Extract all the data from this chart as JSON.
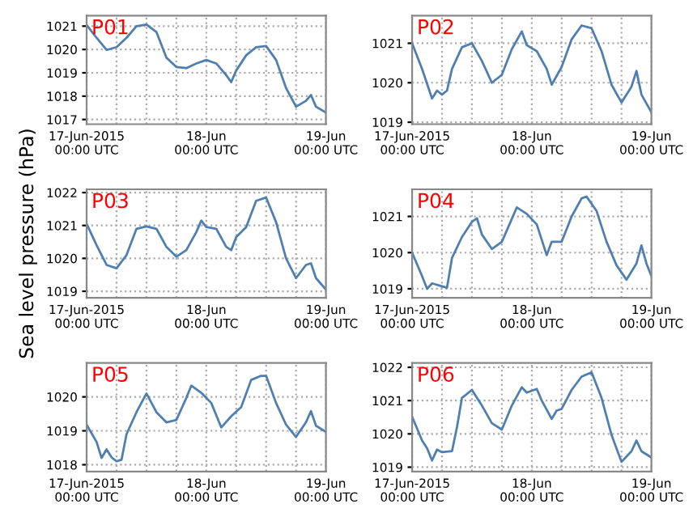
{
  "chart_data": [
    {
      "type": "line",
      "annotations": [
        "P01"
      ],
      "x": [
        "2015-06-17T00:00",
        "2015-06-17T02:00",
        "2015-06-17T04:00",
        "2015-06-17T06:00",
        "2015-06-17T08:00",
        "2015-06-17T10:00",
        "2015-06-17T12:00",
        "2015-06-17T14:00",
        "2015-06-17T16:00",
        "2015-06-17T18:00",
        "2015-06-17T20:00",
        "2015-06-17T22:00",
        "2015-06-18T00:00",
        "2015-06-18T02:00",
        "2015-06-18T04:00",
        "2015-06-18T05:00",
        "2015-06-18T06:00",
        "2015-06-18T08:00",
        "2015-06-18T10:00",
        "2015-06-18T12:00",
        "2015-06-18T14:00",
        "2015-06-18T16:00",
        "2015-06-18T18:00",
        "2015-06-18T20:00",
        "2015-06-18T21:00",
        "2015-06-18T22:00",
        "2015-06-19T00:00"
      ],
      "series": [
        {
          "color": "#4f7fb0",
          "values": [
            1021.05,
            1020.5,
            1019.98,
            1020.1,
            1020.5,
            1021.0,
            1021.07,
            1020.75,
            1019.65,
            1019.25,
            1019.2,
            1019.4,
            1019.55,
            1019.4,
            1018.9,
            1018.6,
            1019.1,
            1019.75,
            1020.1,
            1020.15,
            1019.55,
            1018.35,
            1017.55,
            1017.8,
            1018.05,
            1017.55,
            1017.3
          ]
        }
      ],
      "xlim": [
        "2015-06-17T00:00",
        "2015-06-19T00:00"
      ],
      "xticks": [
        {
          "value": "2015-06-17T00:00",
          "label": "17-Jun-2015\n00:00 UTC"
        },
        {
          "value": "2015-06-17T06:00",
          "label": null
        },
        {
          "value": "2015-06-17T12:00",
          "label": null
        },
        {
          "value": "2015-06-17T18:00",
          "label": null
        },
        {
          "value": "2015-06-18T00:00",
          "label": "18-Jun\n00:00 UTC"
        },
        {
          "value": "2015-06-18T06:00",
          "label": null
        },
        {
          "value": "2015-06-18T12:00",
          "label": null
        },
        {
          "value": "2015-06-18T18:00",
          "label": null
        },
        {
          "value": "2015-06-19T00:00",
          "label": "19-Jun\n00:00 UTC"
        }
      ],
      "ylim": [
        1016.8,
        1021.45
      ],
      "yticks": [
        1017,
        1018,
        1019,
        1020,
        1021
      ],
      "grid": true,
      "line_style": "solid"
    },
    {
      "type": "line",
      "annotations": [
        "P02"
      ],
      "x": [
        "2015-06-17T00:00",
        "2015-06-17T02:00",
        "2015-06-17T04:00",
        "2015-06-17T05:00",
        "2015-06-17T06:00",
        "2015-06-17T07:00",
        "2015-06-17T08:00",
        "2015-06-17T10:00",
        "2015-06-17T12:00",
        "2015-06-17T14:00",
        "2015-06-17T16:00",
        "2015-06-17T18:00",
        "2015-06-17T20:00",
        "2015-06-17T22:00",
        "2015-06-17T23:00",
        "2015-06-18T01:00",
        "2015-06-18T03:00",
        "2015-06-18T04:00",
        "2015-06-18T06:00",
        "2015-06-18T08:00",
        "2015-06-18T10:00",
        "2015-06-18T12:00",
        "2015-06-18T14:00",
        "2015-06-18T16:00",
        "2015-06-18T18:00",
        "2015-06-18T20:00",
        "2015-06-18T21:00",
        "2015-06-18T22:00",
        "2015-06-19T00:00"
      ],
      "series": [
        {
          "color": "#4f7fb0",
          "values": [
            1021.0,
            1020.35,
            1019.6,
            1019.8,
            1019.7,
            1019.8,
            1020.35,
            1020.9,
            1021.0,
            1020.55,
            1020.0,
            1020.2,
            1020.85,
            1021.3,
            1020.95,
            1020.8,
            1020.35,
            1019.95,
            1020.4,
            1021.1,
            1021.45,
            1021.38,
            1020.8,
            1019.95,
            1019.5,
            1019.9,
            1020.3,
            1019.7,
            1019.25
          ]
        }
      ],
      "xlim": [
        "2015-06-17T00:00",
        "2015-06-19T00:00"
      ],
      "xticks": [
        {
          "value": "2015-06-17T00:00",
          "label": "17-Jun-2015\n00:00 UTC"
        },
        {
          "value": "2015-06-17T06:00",
          "label": null
        },
        {
          "value": "2015-06-17T12:00",
          "label": null
        },
        {
          "value": "2015-06-17T18:00",
          "label": null
        },
        {
          "value": "2015-06-18T00:00",
          "label": "18-Jun\n00:00 UTC"
        },
        {
          "value": "2015-06-18T06:00",
          "label": null
        },
        {
          "value": "2015-06-18T12:00",
          "label": null
        },
        {
          "value": "2015-06-18T18:00",
          "label": null
        },
        {
          "value": "2015-06-19T00:00",
          "label": "19-Jun\n00:00 UTC"
        }
      ],
      "ylim": [
        1018.95,
        1021.7
      ],
      "yticks": [
        1019,
        1020,
        1021
      ],
      "grid": true,
      "line_style": "solid"
    },
    {
      "type": "line",
      "annotations": [
        "P03"
      ],
      "ylabel": "Sea level pressure (hPa)",
      "x": [
        "2015-06-17T00:00",
        "2015-06-17T02:00",
        "2015-06-17T04:00",
        "2015-06-17T06:00",
        "2015-06-17T08:00",
        "2015-06-17T10:00",
        "2015-06-17T12:00",
        "2015-06-17T14:00",
        "2015-06-17T16:00",
        "2015-06-17T18:00",
        "2015-06-17T20:00",
        "2015-06-17T22:00",
        "2015-06-17T23:00",
        "2015-06-18T00:00",
        "2015-06-18T02:00",
        "2015-06-18T04:00",
        "2015-06-18T05:00",
        "2015-06-18T06:00",
        "2015-06-18T08:00",
        "2015-06-18T10:00",
        "2015-06-18T12:00",
        "2015-06-18T14:00",
        "2015-06-18T16:00",
        "2015-06-18T18:00",
        "2015-06-18T20:00",
        "2015-06-18T21:00",
        "2015-06-18T22:00",
        "2015-06-19T00:00"
      ],
      "series": [
        {
          "color": "#4f7fb0",
          "values": [
            1021.05,
            1020.4,
            1019.8,
            1019.7,
            1020.1,
            1020.9,
            1020.97,
            1020.9,
            1020.35,
            1020.05,
            1020.25,
            1020.8,
            1021.15,
            1020.95,
            1020.9,
            1020.35,
            1020.25,
            1020.65,
            1020.95,
            1021.75,
            1021.85,
            1021.1,
            1020.0,
            1019.4,
            1019.8,
            1019.85,
            1019.4,
            1019.05
          ]
        }
      ],
      "xlim": [
        "2015-06-17T00:00",
        "2015-06-19T00:00"
      ],
      "xticks": [
        {
          "value": "2015-06-17T00:00",
          "label": "17-Jun-2015\n00:00 UTC"
        },
        {
          "value": "2015-06-17T06:00",
          "label": null
        },
        {
          "value": "2015-06-17T12:00",
          "label": null
        },
        {
          "value": "2015-06-17T18:00",
          "label": null
        },
        {
          "value": "2015-06-18T00:00",
          "label": "18-Jun\n00:00 UTC"
        },
        {
          "value": "2015-06-18T06:00",
          "label": null
        },
        {
          "value": "2015-06-18T12:00",
          "label": null
        },
        {
          "value": "2015-06-18T18:00",
          "label": null
        },
        {
          "value": "2015-06-19T00:00",
          "label": "19-Jun\n00:00 UTC"
        }
      ],
      "ylim": [
        1018.8,
        1022.1
      ],
      "yticks": [
        1019,
        1020,
        1021,
        1022
      ],
      "grid": true,
      "line_style": "solid"
    },
    {
      "type": "line",
      "annotations": [
        "P04"
      ],
      "x": [
        "2015-06-17T00:00",
        "2015-06-17T02:00",
        "2015-06-17T03:00",
        "2015-06-17T04:00",
        "2015-06-17T06:00",
        "2015-06-17T07:00",
        "2015-06-17T08:00",
        "2015-06-17T10:00",
        "2015-06-17T12:00",
        "2015-06-17T13:00",
        "2015-06-17T14:00",
        "2015-06-17T16:00",
        "2015-06-17T18:00",
        "2015-06-17T20:00",
        "2015-06-17T21:00",
        "2015-06-17T23:00",
        "2015-06-18T01:00",
        "2015-06-18T03:00",
        "2015-06-18T04:00",
        "2015-06-18T06:00",
        "2015-06-18T08:00",
        "2015-06-18T10:00",
        "2015-06-18T11:00",
        "2015-06-18T13:00",
        "2015-06-18T15:00",
        "2015-06-18T17:00",
        "2015-06-18T19:00",
        "2015-06-18T21:00",
        "2015-06-18T22:00",
        "2015-06-18T23:00",
        "2015-06-19T00:00"
      ],
      "series": [
        {
          "color": "#4f7fb0",
          "values": [
            1020.0,
            1019.35,
            1019.0,
            1019.15,
            1019.07,
            1019.03,
            1019.85,
            1020.43,
            1020.85,
            1020.95,
            1020.5,
            1020.1,
            1020.3,
            1020.93,
            1021.25,
            1021.07,
            1020.78,
            1019.93,
            1020.3,
            1020.3,
            1021.0,
            1021.5,
            1021.55,
            1021.15,
            1020.3,
            1019.65,
            1019.25,
            1019.7,
            1020.2,
            1019.7,
            1019.35
          ]
        }
      ],
      "xlim": [
        "2015-06-17T00:00",
        "2015-06-19T00:00"
      ],
      "xticks": [
        {
          "value": "2015-06-17T00:00",
          "label": "17-Jun-2015\n00:00 UTC"
        },
        {
          "value": "2015-06-17T06:00",
          "label": null
        },
        {
          "value": "2015-06-17T12:00",
          "label": null
        },
        {
          "value": "2015-06-17T18:00",
          "label": null
        },
        {
          "value": "2015-06-18T00:00",
          "label": "18-Jun\n00:00 UTC"
        },
        {
          "value": "2015-06-18T06:00",
          "label": null
        },
        {
          "value": "2015-06-18T12:00",
          "label": null
        },
        {
          "value": "2015-06-18T18:00",
          "label": null
        },
        {
          "value": "2015-06-19T00:00",
          "label": "19-Jun\n00:00 UTC"
        }
      ],
      "ylim": [
        1018.75,
        1021.75
      ],
      "yticks": [
        1019,
        1020,
        1021
      ],
      "grid": true,
      "line_style": "solid"
    },
    {
      "type": "line",
      "annotations": [
        "P05"
      ],
      "x": [
        "2015-06-17T00:00",
        "2015-06-17T02:00",
        "2015-06-17T03:00",
        "2015-06-17T04:00",
        "2015-06-17T05:00",
        "2015-06-17T06:00",
        "2015-06-17T07:00",
        "2015-06-17T08:00",
        "2015-06-17T10:00",
        "2015-06-17T12:00",
        "2015-06-17T14:00",
        "2015-06-17T16:00",
        "2015-06-17T18:00",
        "2015-06-17T20:00",
        "2015-06-17T21:00",
        "2015-06-17T23:00",
        "2015-06-18T01:00",
        "2015-06-18T03:00",
        "2015-06-18T05:00",
        "2015-06-18T07:00",
        "2015-06-18T09:00",
        "2015-06-18T11:00",
        "2015-06-18T12:00",
        "2015-06-18T14:00",
        "2015-06-18T16:00",
        "2015-06-18T18:00",
        "2015-06-18T20:00",
        "2015-06-18T21:00",
        "2015-06-18T22:00",
        "2015-06-19T00:00"
      ],
      "series": [
        {
          "color": "#4f7fb0",
          "values": [
            1019.18,
            1018.67,
            1018.2,
            1018.45,
            1018.22,
            1018.1,
            1018.15,
            1018.9,
            1019.55,
            1020.1,
            1019.55,
            1019.25,
            1019.32,
            1019.97,
            1020.33,
            1020.12,
            1019.82,
            1019.1,
            1019.43,
            1019.7,
            1020.5,
            1020.62,
            1020.62,
            1019.82,
            1019.18,
            1018.82,
            1019.25,
            1019.58,
            1019.15,
            1018.97
          ]
        }
      ],
      "xlim": [
        "2015-06-17T00:00",
        "2015-06-19T00:00"
      ],
      "xticks": [
        {
          "value": "2015-06-17T00:00",
          "label": "17-Jun-2015\n00:00 UTC"
        },
        {
          "value": "2015-06-17T06:00",
          "label": null
        },
        {
          "value": "2015-06-17T12:00",
          "label": null
        },
        {
          "value": "2015-06-17T18:00",
          "label": null
        },
        {
          "value": "2015-06-18T00:00",
          "label": "18-Jun\n00:00 UTC"
        },
        {
          "value": "2015-06-18T06:00",
          "label": null
        },
        {
          "value": "2015-06-18T12:00",
          "label": null
        },
        {
          "value": "2015-06-18T18:00",
          "label": null
        },
        {
          "value": "2015-06-19T00:00",
          "label": "19-Jun\n00:00 UTC"
        }
      ],
      "ylim": [
        1017.8,
        1021.0
      ],
      "yticks": [
        1018,
        1019,
        1020
      ],
      "grid": true,
      "line_style": "solid"
    },
    {
      "type": "line",
      "annotations": [
        "P06"
      ],
      "x": [
        "2015-06-17T00:00",
        "2015-06-17T02:00",
        "2015-06-17T03:00",
        "2015-06-17T04:00",
        "2015-06-17T05:00",
        "2015-06-17T06:00",
        "2015-06-17T08:00",
        "2015-06-17T09:00",
        "2015-06-17T10:00",
        "2015-06-17T12:00",
        "2015-06-17T14:00",
        "2015-06-17T16:00",
        "2015-06-17T18:00",
        "2015-06-17T20:00",
        "2015-06-17T22:00",
        "2015-06-17T23:00",
        "2015-06-18T01:00",
        "2015-06-18T02:00",
        "2015-06-18T04:00",
        "2015-06-18T05:00",
        "2015-06-18T06:00",
        "2015-06-18T08:00",
        "2015-06-18T10:00",
        "2015-06-18T12:00",
        "2015-06-18T14:00",
        "2015-06-18T16:00",
        "2015-06-18T18:00",
        "2015-06-18T20:00",
        "2015-06-18T21:00",
        "2015-06-18T22:00",
        "2015-06-19T00:00"
      ],
      "series": [
        {
          "color": "#4f7fb0",
          "values": [
            1020.52,
            1019.8,
            1019.57,
            1019.2,
            1019.53,
            1019.45,
            1019.48,
            1020.2,
            1021.08,
            1021.32,
            1020.85,
            1020.32,
            1020.13,
            1020.85,
            1021.4,
            1021.24,
            1021.35,
            1021.0,
            1020.45,
            1020.7,
            1020.75,
            1021.32,
            1021.72,
            1021.85,
            1021.08,
            1019.97,
            1019.16,
            1019.48,
            1019.8,
            1019.48,
            1019.29
          ]
        }
      ],
      "xlim": [
        "2015-06-17T00:00",
        "2015-06-19T00:00"
      ],
      "xticks": [
        {
          "value": "2015-06-17T00:00",
          "label": "17-Jun-2015\n00:00 UTC"
        },
        {
          "value": "2015-06-17T06:00",
          "label": null
        },
        {
          "value": "2015-06-17T12:00",
          "label": null
        },
        {
          "value": "2015-06-17T18:00",
          "label": null
        },
        {
          "value": "2015-06-18T00:00",
          "label": "18-Jun\n00:00 UTC"
        },
        {
          "value": "2015-06-18T06:00",
          "label": null
        },
        {
          "value": "2015-06-18T12:00",
          "label": null
        },
        {
          "value": "2015-06-18T18:00",
          "label": null
        },
        {
          "value": "2015-06-19T00:00",
          "label": "19-Jun\n00:00 UTC"
        }
      ],
      "ylim": [
        1018.87,
        1022.13
      ],
      "yticks": [
        1019,
        1020,
        1021,
        1022
      ],
      "grid": true,
      "line_style": "solid"
    }
  ]
}
